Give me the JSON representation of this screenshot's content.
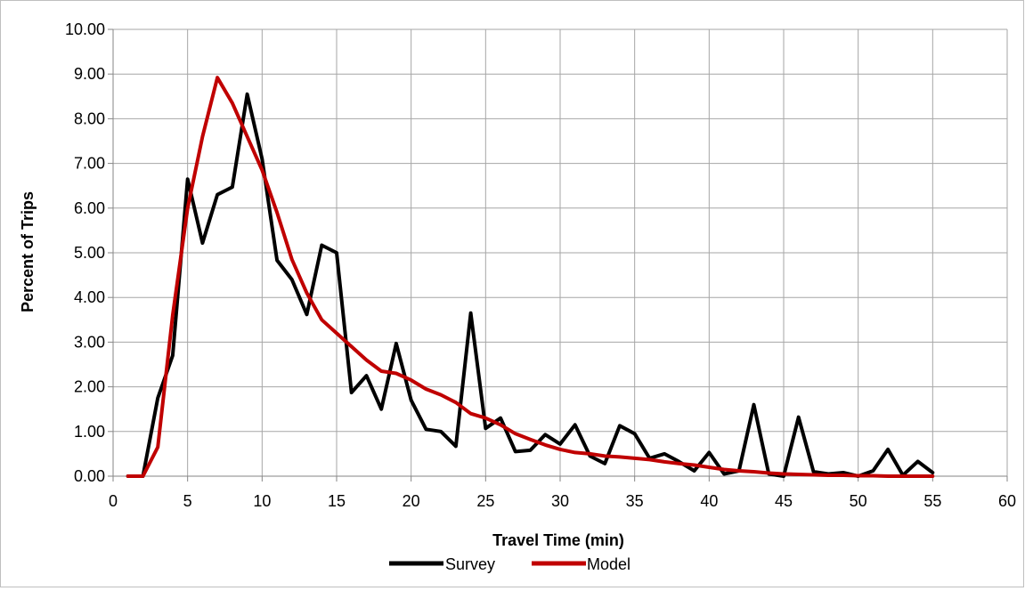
{
  "chart_data": {
    "type": "line",
    "title": "",
    "xlabel": "Travel Time (min)",
    "ylabel": "Percent of Trips",
    "xlim": [
      0,
      60
    ],
    "ylim": [
      0,
      10
    ],
    "x_ticks": [
      0,
      5,
      10,
      15,
      20,
      25,
      30,
      35,
      40,
      45,
      50,
      55,
      60
    ],
    "y_ticks": [
      "0.00",
      "1.00",
      "2.00",
      "3.00",
      "4.00",
      "5.00",
      "6.00",
      "7.00",
      "8.00",
      "9.00",
      "10.00"
    ],
    "grid": true,
    "legend_position": "bottom",
    "x": [
      1,
      2,
      3,
      4,
      5,
      6,
      7,
      8,
      9,
      10,
      11,
      12,
      13,
      14,
      15,
      16,
      17,
      18,
      19,
      20,
      21,
      22,
      23,
      24,
      25,
      26,
      27,
      28,
      29,
      30,
      31,
      32,
      33,
      34,
      35,
      36,
      37,
      38,
      39,
      40,
      41,
      42,
      43,
      44,
      45,
      46,
      47,
      48,
      49,
      50,
      51,
      52,
      53,
      54,
      55
    ],
    "series": [
      {
        "name": "Survey",
        "color": "#000000",
        "values": [
          0.0,
          0.0,
          1.75,
          2.7,
          6.65,
          5.22,
          6.3,
          6.47,
          8.55,
          7.1,
          4.83,
          4.4,
          3.62,
          5.17,
          5.0,
          1.87,
          2.25,
          1.5,
          2.97,
          1.7,
          1.05,
          1.0,
          0.67,
          3.65,
          1.07,
          1.3,
          0.55,
          0.58,
          0.93,
          0.72,
          1.15,
          0.45,
          0.28,
          1.13,
          0.95,
          0.4,
          0.5,
          0.32,
          0.12,
          0.53,
          0.05,
          0.12,
          1.6,
          0.05,
          0.0,
          1.32,
          0.1,
          0.05,
          0.08,
          0.0,
          0.12,
          0.6,
          0.02,
          0.33,
          0.08
        ]
      },
      {
        "name": "Model",
        "color": "#c00000",
        "values": [
          0.0,
          0.0,
          0.65,
          3.6,
          6.0,
          7.6,
          8.92,
          8.35,
          7.6,
          6.85,
          5.9,
          4.85,
          4.1,
          3.5,
          3.2,
          2.9,
          2.6,
          2.35,
          2.3,
          2.15,
          1.95,
          1.82,
          1.65,
          1.4,
          1.3,
          1.15,
          0.95,
          0.82,
          0.7,
          0.6,
          0.53,
          0.5,
          0.45,
          0.43,
          0.4,
          0.37,
          0.32,
          0.28,
          0.25,
          0.2,
          0.15,
          0.12,
          0.1,
          0.07,
          0.05,
          0.04,
          0.03,
          0.02,
          0.02,
          0.01,
          0.01,
          0.0,
          0.0,
          0.0,
          0.0
        ]
      }
    ]
  }
}
